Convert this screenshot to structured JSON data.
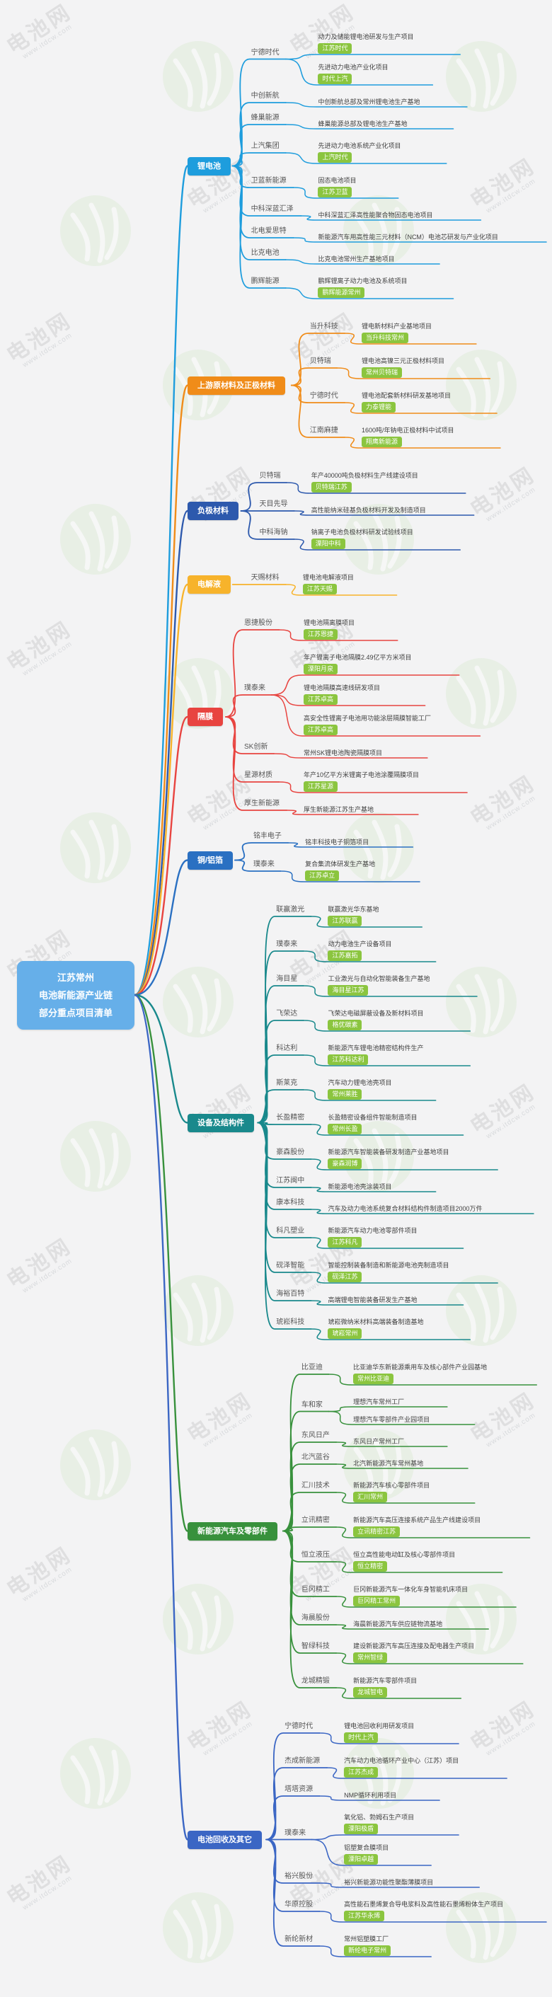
{
  "watermark": {
    "brand": "电池网",
    "site": "www.itdcw.com"
  },
  "tag_color": "#8bc53f",
  "central": {
    "color": "#66afe9",
    "lines": [
      "江苏常州",
      "电池新能源产业链",
      "部分重点项目清单"
    ]
  },
  "branches": [
    {
      "label": "锂电池",
      "color": "#1e9ddd",
      "companies": [
        {
          "name": "宁德时代",
          "projects": [
            {
              "title": "动力及储能锂电池研发与生产项目",
              "tag": "江苏时代"
            },
            {
              "title": "先进动力电池产业化项目",
              "tag": "时代上汽"
            }
          ]
        },
        {
          "name": "中创新航",
          "projects": [
            {
              "title": "中创新航总部及常州锂电池生产基地"
            }
          ]
        },
        {
          "name": "蜂巢能源",
          "projects": [
            {
              "title": "蜂巢能源总部及锂电池生产基地"
            }
          ]
        },
        {
          "name": "上汽集团",
          "projects": [
            {
              "title": "先进动力电池系统产业化项目",
              "tag": "上汽时代"
            }
          ]
        },
        {
          "name": "卫蓝新能源",
          "projects": [
            {
              "title": "固态电池项目",
              "tag": "江苏卫蓝"
            }
          ]
        },
        {
          "name": "中科深蓝汇泽",
          "projects": [
            {
              "title": "中科深蓝汇泽高性能聚合物固态电池项目"
            }
          ]
        },
        {
          "name": "北电爱思特",
          "projects": [
            {
              "title": "新能源汽车用高性能三元材料（NCM）电池芯研发与产业化项目"
            }
          ]
        },
        {
          "name": "比克电池",
          "projects": [
            {
              "title": "比克电池常州生产基地项目"
            }
          ]
        },
        {
          "name": "鹏辉能源",
          "projects": [
            {
              "title": "鹏辉锂离子动力电池及系统项目",
              "tag": "鹏辉能源常州"
            }
          ]
        }
      ]
    },
    {
      "label": "上游原材料及正极材料",
      "color": "#f08c19",
      "companies": [
        {
          "name": "当升科技",
          "projects": [
            {
              "title": "锂电新材料产业基地项目",
              "tag": "当升科技常州"
            }
          ]
        },
        {
          "name": "贝特瑞",
          "projects": [
            {
              "title": "锂电池高镍三元正极材料项目",
              "tag": "常州贝特瑞"
            }
          ]
        },
        {
          "name": "宁德时代",
          "projects": [
            {
              "title": "锂电池配套新材料研发基地项目",
              "tag": "力泰锂能"
            }
          ]
        },
        {
          "name": "江南麻捷",
          "projects": [
            {
              "title": "1600吨/年钠电正极材料中试项目",
              "tag": "翔鹰新能源"
            }
          ]
        }
      ]
    },
    {
      "label": "负极材料",
      "color": "#2d59ad",
      "companies": [
        {
          "name": "贝特瑞",
          "projects": [
            {
              "title": "年产40000吨负极材料生产线建设项目",
              "tag": "贝特瑞江苏"
            }
          ]
        },
        {
          "name": "天目先导",
          "projects": [
            {
              "title": "高性能纳米硅基负极材料开发及制造项目"
            }
          ]
        },
        {
          "name": "中科海钠",
          "projects": [
            {
              "title": "钠离子电池负极材料研发试验线项目",
              "tag": "溧阳中科"
            }
          ]
        }
      ]
    },
    {
      "label": "电解液",
      "color": "#f7b32b",
      "companies": [
        {
          "name": "天赐材料",
          "projects": [
            {
              "title": "锂电池电解液项目",
              "tag": "江苏天赐"
            }
          ]
        }
      ]
    },
    {
      "label": "隔膜",
      "color": "#e84440",
      "companies": [
        {
          "name": "恩捷股份",
          "projects": [
            {
              "title": "锂电池隔离膜项目",
              "tag": "江苏恩捷"
            }
          ]
        },
        {
          "name": "璞泰来",
          "projects": [
            {
              "title": "年产锂离子电池隔膜2.49亿平方米项目",
              "tag": "溧阳月泉"
            },
            {
              "title": "锂电池隔膜高速线研发项目",
              "tag": "江苏卓高"
            },
            {
              "title": "高安全性锂离子电池用功能涂层隔膜智能工厂",
              "tag": "江苏卓高"
            }
          ]
        },
        {
          "name": "SK创新",
          "projects": [
            {
              "title": "常州SK锂电池陶瓷隔膜项目"
            }
          ]
        },
        {
          "name": "星源材质",
          "projects": [
            {
              "title": "年产10亿平方米锂离子电池涂覆隔膜项目",
              "tag": "江苏星源"
            }
          ]
        },
        {
          "name": "厚生新能源",
          "projects": [
            {
              "title": "厚生新能源江苏生产基地"
            }
          ]
        }
      ]
    },
    {
      "label": "铜/铝箔",
      "color": "#2a70c2",
      "companies": [
        {
          "name": "铭丰电子",
          "projects": [
            {
              "title": "铭丰科技电子铜箔项目"
            }
          ]
        },
        {
          "name": "璞泰来",
          "projects": [
            {
              "title": "复合集流体研发生产基地",
              "tag": "江苏卓立"
            }
          ]
        }
      ]
    },
    {
      "label": "设备及结构件",
      "color": "#19898c",
      "companies": [
        {
          "name": "联赢激光",
          "projects": [
            {
              "title": "联赢激光华东基地",
              "tag": "江苏联赢"
            }
          ]
        },
        {
          "name": "璞泰来",
          "projects": [
            {
              "title": "动力电池生产设备项目",
              "tag": "江苏嘉拓"
            }
          ]
        },
        {
          "name": "海目星",
          "projects": [
            {
              "title": "工业激光与自动化智能装备生产基地",
              "tag": "海目星江苏"
            }
          ]
        },
        {
          "name": "飞荣达",
          "projects": [
            {
              "title": "飞荣达电磁屏蔽设备及新材料项目",
              "tag": "格优碳素"
            }
          ]
        },
        {
          "name": "科达利",
          "projects": [
            {
              "title": "新能源汽车锂电池精密结构件生产",
              "tag": "江苏科达利"
            }
          ]
        },
        {
          "name": "斯莱克",
          "projects": [
            {
              "title": "汽车动力锂电池壳项目",
              "tag": "常州莱胜"
            }
          ]
        },
        {
          "name": "长盈精密",
          "projects": [
            {
              "title": "长盈精密设备组件智能制造项目",
              "tag": "常州长盈"
            }
          ]
        },
        {
          "name": "豪森股份",
          "projects": [
            {
              "title": "新能源汽车智能装备研发制造产业基地项目",
              "tag": "豪森润博"
            }
          ]
        },
        {
          "name": "江苏闽中",
          "projects": [
            {
              "title": "新能源电池壳涂装项目"
            }
          ]
        },
        {
          "name": "康本科技",
          "projects": [
            {
              "title": "汽车及动力电池系统复合材料结构件制造项目2000万件"
            }
          ]
        },
        {
          "name": "科凡塑业",
          "projects": [
            {
              "title": "新能源汽车动力电池零部件项目",
              "tag": "江苏科凡"
            }
          ]
        },
        {
          "name": "砚泽智能",
          "projects": [
            {
              "title": "智能控制装备制造和新能源电池壳制造项目",
              "tag": "砚泽江苏"
            }
          ]
        },
        {
          "name": "海裕百特",
          "projects": [
            {
              "title": "高端锂电智能装备研发生产基地"
            }
          ]
        },
        {
          "name": "琥崧科技",
          "projects": [
            {
              "title": "琥崧微纳米材料高端装备制造基地",
              "tag": "琥崧常州"
            }
          ]
        }
      ]
    },
    {
      "label": "新能源汽车及零部件",
      "color": "#38913c",
      "companies": [
        {
          "name": "比亚迪",
          "projects": [
            {
              "title": "比亚迪华东新能源乘用车及核心部件产业园基地",
              "tag": "常州比亚迪"
            }
          ]
        },
        {
          "name": "车和家",
          "projects": [
            {
              "title": "理想汽车常州工厂"
            },
            {
              "title": "理想汽车零部件产业园项目"
            }
          ]
        },
        {
          "name": "东风日产",
          "projects": [
            {
              "title": "东风日产常州工厂"
            }
          ]
        },
        {
          "name": "北汽蓝谷",
          "projects": [
            {
              "title": "北汽新能源汽车常州基地"
            }
          ]
        },
        {
          "name": "汇川技术",
          "projects": [
            {
              "title": "新能源汽车核心零部件项目",
              "tag": "汇川常州"
            }
          ]
        },
        {
          "name": "立讯精密",
          "projects": [
            {
              "title": "新能源汽车高压连接系统产品生产线建设项目",
              "tag": "立讯精密江苏"
            }
          ]
        },
        {
          "name": "恒立液压",
          "projects": [
            {
              "title": "恒立高性能电动缸及核心零部件项目",
              "tag": "恒立精密"
            }
          ]
        },
        {
          "name": "巨冈精工",
          "projects": [
            {
              "title": "巨冈新能源汽车一体化车身智能机床项目",
              "tag": "巨冈精工常州"
            }
          ]
        },
        {
          "name": "海晨股份",
          "projects": [
            {
              "title": "海晨新能源汽车供应链物流基地"
            }
          ]
        },
        {
          "name": "智绿科技",
          "projects": [
            {
              "title": "建设新能源汽车高压连接及配电器生产项目",
              "tag": "常州智绿"
            }
          ]
        },
        {
          "name": "龙城精锻",
          "projects": [
            {
              "title": "新能源汽车零部件项目",
              "tag": "龙城智电"
            }
          ]
        }
      ]
    },
    {
      "label": "电池回收及其它",
      "color": "#3b66c4",
      "companies": [
        {
          "name": "宁德时代",
          "projects": [
            {
              "title": "锂电池回收利用研发项目",
              "tag": "时代上汽"
            }
          ]
        },
        {
          "name": "杰成新能源",
          "projects": [
            {
              "title": "汽车动力电池循环产业中心（江苏）项目",
              "tag": "江苏杰成"
            }
          ]
        },
        {
          "name": "塔塔资源",
          "projects": [
            {
              "title": "NMP循环利用项目"
            }
          ]
        },
        {
          "name": "璞泰来",
          "projects": [
            {
              "title": "氧化铝、勃姆石生产项目",
              "tag": "溧阳极盾"
            },
            {
              "title": "铝塑复合膜项目",
              "tag": "溧阳卓越"
            }
          ]
        },
        {
          "name": "裕兴股份",
          "projects": [
            {
              "title": "裕兴新能源功能性聚酯薄膜项目"
            }
          ]
        },
        {
          "name": "华原控股",
          "projects": [
            {
              "title": "高性能石墨烯复合导电浆料及高性能石墨烯粉体生产项目",
              "tag": "江苏华永烯"
            }
          ]
        },
        {
          "name": "新纶新材",
          "projects": [
            {
              "title": "常州铝塑膜工厂",
              "tag": "新纶电子常州"
            }
          ]
        }
      ]
    }
  ]
}
